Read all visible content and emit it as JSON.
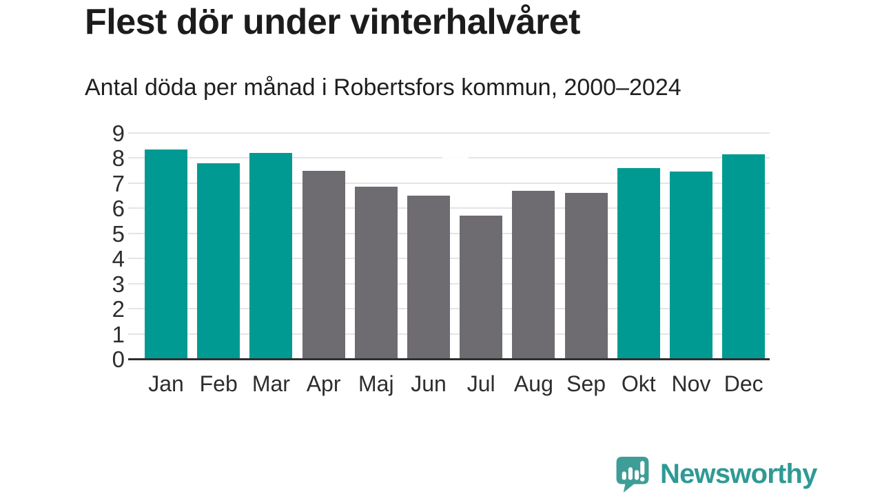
{
  "chart_data": {
    "type": "bar",
    "title": "Flest dör under vinterhalvåret",
    "subtitle": "Antal döda per månad i Robertsfors kommun, 2000–2024",
    "categories": [
      "Jan",
      "Feb",
      "Mar",
      "Apr",
      "Maj",
      "Jun",
      "Jul",
      "Aug",
      "Sep",
      "Okt",
      "Nov",
      "Dec"
    ],
    "values": [
      8.35,
      7.8,
      8.2,
      7.5,
      6.85,
      6.5,
      5.7,
      6.7,
      6.6,
      7.6,
      7.45,
      8.15
    ],
    "xlabel": "",
    "ylabel": "",
    "ylim": [
      0,
      9
    ],
    "yticks": [
      0,
      1,
      2,
      3,
      4,
      5,
      6,
      7,
      8,
      9
    ],
    "grid": true,
    "legend": "none",
    "bar_colors": {
      "highlight": "#009a92",
      "default": "#6e6b71"
    },
    "highlighted_categories": [
      "Jan",
      "Feb",
      "Mar",
      "Okt",
      "Nov",
      "Dec"
    ],
    "gridline_color": "#e4e4e4",
    "axis_line_color": "#2e2e2e"
  },
  "branding": {
    "logo_text": "Newsworthy",
    "logo_color": "#2f9a94",
    "logo_mark_color": "#3f9d97",
    "logo_mark_icon": "speech-bubble-bar-chart-exclamation"
  }
}
